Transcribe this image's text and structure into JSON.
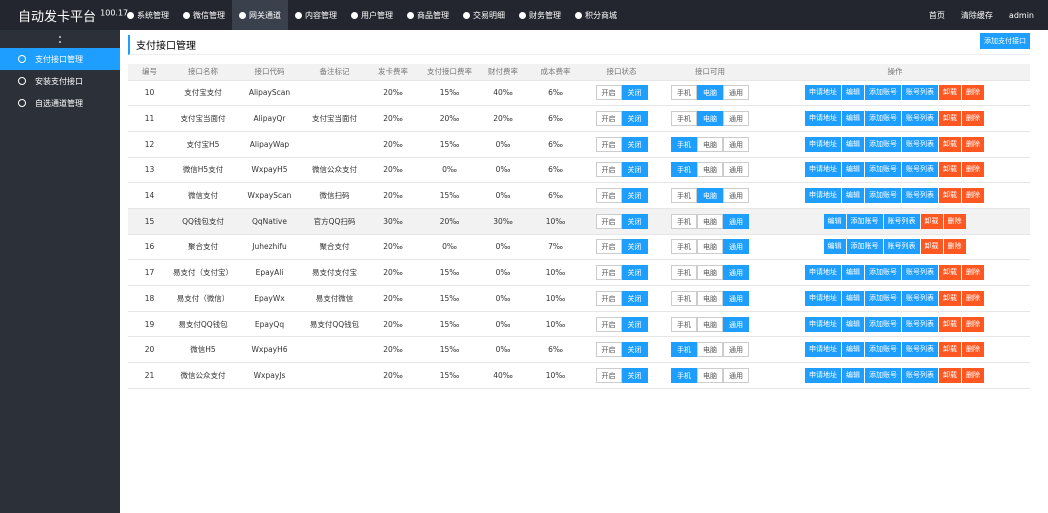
{
  "header": {
    "brand": "自动发卡平台",
    "version": "100.17",
    "nav": [
      "系统管理",
      "微信管理",
      "网关通道",
      "内容管理",
      "用户管理",
      "商品管理",
      "交易明细",
      "财务管理",
      "积分商城"
    ],
    "active_nav": 2,
    "right": [
      "首页",
      "清除缓存",
      "admin"
    ]
  },
  "sidebar": {
    "items": [
      "支付接口管理",
      "安装支付接口",
      "自选通道管理"
    ],
    "active": 0
  },
  "page": {
    "title": "支付接口管理",
    "add_button": "添加支付接口"
  },
  "table": {
    "columns": [
      "编号",
      "接口名称",
      "接口代码",
      "备注标记",
      "发卡费率",
      "支付接口费率",
      "财付费率",
      "成本费率",
      "接口状态",
      "接口可用",
      "操作"
    ],
    "status_buttons": [
      "开启",
      "关闭"
    ],
    "usage_buttons": [
      "手机",
      "电脑",
      "通用"
    ],
    "actions": [
      "申请地址",
      "编辑",
      "添加账号",
      "账号列表",
      "卸载",
      "删除"
    ],
    "highlighted_row": 5,
    "rows": [
      {
        "cells": [
          10,
          "支付宝支付",
          "AlipayScan",
          null,
          "20‰",
          "15‰",
          "40‰",
          "6‰"
        ],
        "status": 1,
        "usage": 1,
        "apply": true
      },
      {
        "cells": [
          11,
          "支付宝当面付",
          "AlipayQr",
          "支付宝当面付",
          "20‰",
          "20‰",
          "20‰",
          "6‰"
        ],
        "status": 1,
        "usage": 1,
        "apply": true
      },
      {
        "cells": [
          12,
          "支付宝H5",
          "AlipayWap",
          null,
          "20‰",
          "15‰",
          "0‰",
          "6‰"
        ],
        "status": 1,
        "usage": 0,
        "apply": true
      },
      {
        "cells": [
          13,
          "微信H5支付",
          "WxpayH5",
          "微信公众支付",
          "20‰",
          "0‰",
          "0‰",
          "6‰"
        ],
        "status": 1,
        "usage": 0,
        "apply": true
      },
      {
        "cells": [
          14,
          "微信支付",
          "WxpayScan",
          "微信扫码",
          "20‰",
          "15‰",
          "0‰",
          "6‰"
        ],
        "status": 1,
        "usage": 1,
        "apply": true
      },
      {
        "cells": [
          15,
          "QQ钱包支付",
          "QqNative",
          "官方QQ扫码",
          "30‰",
          "20‰",
          "30‰",
          "10‰"
        ],
        "status": 1,
        "usage": 2,
        "apply": false
      },
      {
        "cells": [
          16,
          "聚合支付",
          "Juhezhifu",
          "聚合支付",
          "20‰",
          "0‰",
          "0‰",
          "7‰"
        ],
        "status": 1,
        "usage": 2,
        "apply": false
      },
      {
        "cells": [
          17,
          "易支付（支付宝）",
          "EpayAli",
          "易支付支付宝",
          "20‰",
          "15‰",
          "0‰",
          "10‰"
        ],
        "status": 1,
        "usage": 2,
        "apply": true
      },
      {
        "cells": [
          18,
          "易支付（微信）",
          "EpayWx",
          "易支付微信",
          "20‰",
          "15‰",
          "0‰",
          "10‰"
        ],
        "status": 1,
        "usage": 2,
        "apply": true
      },
      {
        "cells": [
          19,
          "易支付QQ钱包",
          "EpayQq",
          "易支付QQ钱包",
          "20‰",
          "15‰",
          "0‰",
          "10‰"
        ],
        "status": 1,
        "usage": 2,
        "apply": true
      },
      {
        "cells": [
          20,
          "微信H5",
          "WxpayH6",
          null,
          "20‰",
          "15‰",
          "0‰",
          "6‰"
        ],
        "status": 1,
        "usage": 0,
        "apply": true
      },
      {
        "cells": [
          21,
          "微信公众支付",
          "WxpayJs",
          null,
          "20‰",
          "15‰",
          "40‰",
          "10‰"
        ],
        "status": 1,
        "usage": 0,
        "apply": true
      }
    ]
  }
}
